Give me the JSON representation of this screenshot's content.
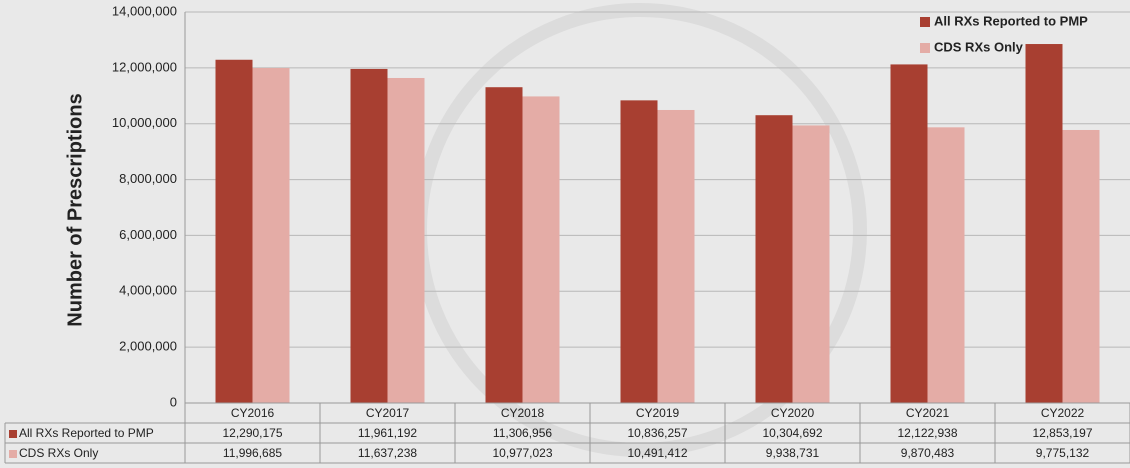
{
  "chart_data": {
    "type": "bar",
    "y_axis_label": "Number of Prescriptions",
    "categories": [
      "CY2016",
      "CY2017",
      "CY2018",
      "CY2019",
      "CY2020",
      "CY2021",
      "CY2022"
    ],
    "series": [
      {
        "name": "All RXs Reported to PMP",
        "color": "#a83f31",
        "values": [
          12290175,
          11961192,
          11306956,
          10836257,
          10304692,
          12122938,
          12853197
        ],
        "value_labels": [
          "12,290,175",
          "11,961,192",
          "11,306,956",
          "10,836,257",
          "10,304,692",
          "12,122,938",
          "12,853,197"
        ]
      },
      {
        "name": "CDS RXs Only",
        "color": "#e4aca6",
        "values": [
          11996685,
          11637238,
          10977023,
          10491412,
          9938731,
          9870483,
          9775132
        ],
        "value_labels": [
          "11,996,685",
          "11,637,238",
          "10,977,023",
          "10,491,412",
          "9,938,731",
          "9,870,483",
          "9,775,132"
        ]
      }
    ],
    "ylim": [
      0,
      14000000
    ],
    "yticks": [
      0,
      {
        "value": 2000000,
        "label": "2,000,000"
      },
      {
        "value": 4000000,
        "label": "4,000,000"
      },
      {
        "value": 6000000,
        "label": "6,000,000"
      },
      {
        "value": 8000000,
        "label": "8,000,000"
      },
      {
        "value": 10000000,
        "label": "10,000,000"
      },
      {
        "value": 12000000,
        "label": "12,000,000"
      },
      {
        "value": 14000000,
        "label": "14,000,000"
      }
    ],
    "grid": true,
    "legend": "top-right"
  }
}
